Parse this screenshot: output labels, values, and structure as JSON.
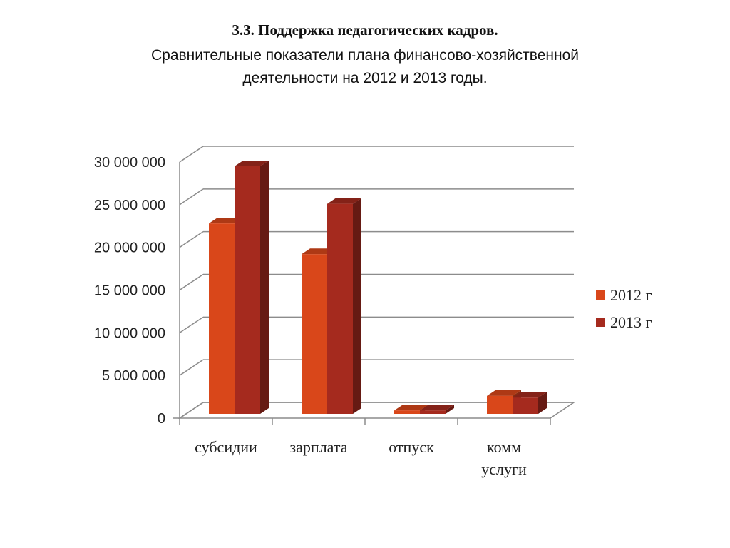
{
  "heading": "3.3. Поддержка педагогических кадров.",
  "subtitle_line1": "Сравнительные показатели  плана финансово-хозяйственной",
  "subtitle_line2": "деятельности на  2012 и 2013 годы.",
  "chart_data": {
    "type": "bar",
    "categories": [
      "субсидии",
      "зарплата",
      "отпуск",
      "комм\nуслуги"
    ],
    "series": [
      {
        "name": "2012 г",
        "values": [
          22300000,
          18700000,
          400000,
          2100000
        ],
        "color": "#d9471a"
      },
      {
        "name": "2013 г",
        "values": [
          29000000,
          24600000,
          400000,
          1900000
        ],
        "color": "#a52a1e"
      }
    ],
    "ylim": [
      0,
      30000000
    ],
    "yticks": [
      "0",
      "5 000 000",
      "10 000 000",
      "15 000 000",
      "20 000 000",
      "25 000 000",
      "30 000 000"
    ],
    "grid": true,
    "legend": "right"
  }
}
